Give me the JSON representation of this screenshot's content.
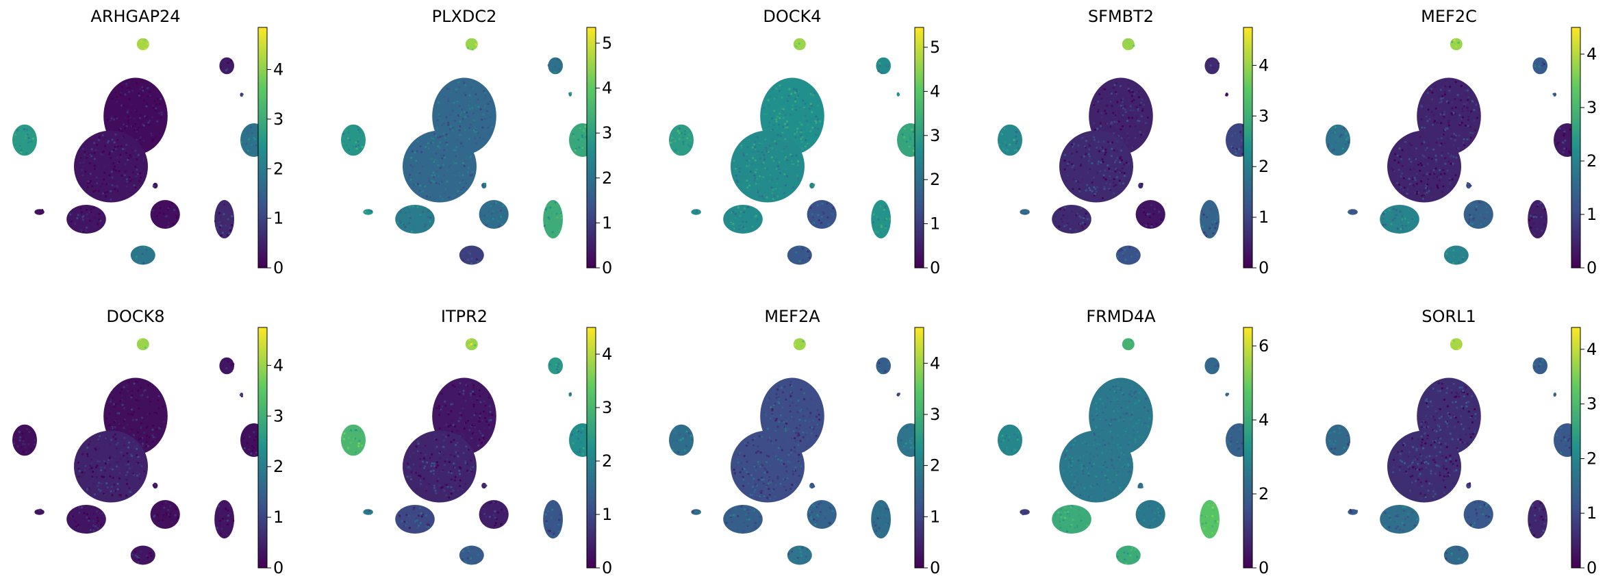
{
  "chart_data": {
    "type": "scatter",
    "description_kind": "umap_gene_expression_grid",
    "colormap": "viridis",
    "colormap_stops": [
      "#440154",
      "#3b528b",
      "#21918c",
      "#5ec962",
      "#fde725"
    ],
    "clusters": [
      {
        "id": "top-small",
        "cx": 0.53,
        "cy": 0.07,
        "rx": 0.025,
        "ry": 0.025
      },
      {
        "id": "upper-right-small",
        "cx": 0.87,
        "cy": 0.16,
        "rx": 0.03,
        "ry": 0.035
      },
      {
        "id": "dot-right",
        "cx": 0.93,
        "cy": 0.28,
        "rx": 0.006,
        "ry": 0.008
      },
      {
        "id": "center-top",
        "cx": 0.5,
        "cy": 0.37,
        "rx": 0.13,
        "ry": 0.16
      },
      {
        "id": "left",
        "cx": 0.05,
        "cy": 0.47,
        "rx": 0.05,
        "ry": 0.065
      },
      {
        "id": "right-big",
        "cx": 0.98,
        "cy": 0.47,
        "rx": 0.055,
        "ry": 0.07
      },
      {
        "id": "center-bottom",
        "cx": 0.4,
        "cy": 0.58,
        "rx": 0.15,
        "ry": 0.15
      },
      {
        "id": "small-mid",
        "cx": 0.58,
        "cy": 0.66,
        "rx": 0.01,
        "ry": 0.012
      },
      {
        "id": "far-left-small",
        "cx": 0.11,
        "cy": 0.77,
        "rx": 0.02,
        "ry": 0.012
      },
      {
        "id": "low-left",
        "cx": 0.3,
        "cy": 0.8,
        "rx": 0.08,
        "ry": 0.06
      },
      {
        "id": "low-center",
        "cx": 0.62,
        "cy": 0.78,
        "rx": 0.06,
        "ry": 0.06
      },
      {
        "id": "low-right",
        "cx": 0.86,
        "cy": 0.8,
        "rx": 0.04,
        "ry": 0.08
      },
      {
        "id": "bottom",
        "cx": 0.53,
        "cy": 0.95,
        "rx": 0.05,
        "ry": 0.04
      }
    ],
    "panels": [
      {
        "gene": "ARHGAP24",
        "vmax": 4.85,
        "ticks": [
          0,
          1,
          2,
          3,
          4
        ],
        "values": {
          "top-small": 4.2,
          "upper-right-small": 0.4,
          "dot-right": 0.6,
          "center-top": 0.15,
          "left": 2.6,
          "right-big": 1.8,
          "center-bottom": 0.3,
          "small-mid": 0.3,
          "far-left-small": 0.3,
          "low-left": 0.3,
          "low-center": 0.2,
          "low-right": 0.6,
          "bottom": 1.9
        }
      },
      {
        "gene": "PLXDC2",
        "vmax": 5.35,
        "ticks": [
          0,
          1,
          2,
          3,
          4,
          5
        ],
        "values": {
          "top-small": 4.5,
          "upper-right-small": 2.0,
          "dot-right": 2.3,
          "center-top": 1.8,
          "left": 2.8,
          "right-big": 3.2,
          "center-bottom": 1.8,
          "small-mid": 2.0,
          "far-left-small": 2.8,
          "low-left": 2.2,
          "low-center": 1.9,
          "low-right": 3.3,
          "bottom": 1.0
        }
      },
      {
        "gene": "DOCK4",
        "vmax": 5.45,
        "ticks": [
          0,
          1,
          2,
          3,
          4,
          5
        ],
        "values": {
          "top-small": 4.6,
          "upper-right-small": 2.6,
          "dot-right": 2.6,
          "center-top": 2.7,
          "left": 3.0,
          "right-big": 3.2,
          "center-bottom": 2.6,
          "small-mid": 2.3,
          "far-left-small": 2.6,
          "low-left": 2.6,
          "low-center": 1.4,
          "low-right": 2.8,
          "bottom": 1.5
        }
      },
      {
        "gene": "SFMBT2",
        "vmax": 4.75,
        "ticks": [
          0,
          1,
          2,
          3,
          4
        ],
        "values": {
          "top-small": 4.0,
          "upper-right-small": 0.6,
          "dot-right": 0.6,
          "center-top": 0.5,
          "left": 2.2,
          "right-big": 1.0,
          "center-bottom": 0.6,
          "small-mid": 0.6,
          "far-left-small": 1.6,
          "low-left": 0.6,
          "low-center": 0.3,
          "low-right": 1.5,
          "bottom": 1.2
        }
      },
      {
        "gene": "MEF2C",
        "vmax": 4.5,
        "ticks": [
          0,
          1,
          2,
          3,
          4
        ],
        "values": {
          "top-small": 3.8,
          "upper-right-small": 1.3,
          "dot-right": 1.3,
          "center-top": 0.5,
          "left": 1.7,
          "right-big": 0.3,
          "center-bottom": 0.5,
          "small-mid": 1.0,
          "far-left-small": 1.2,
          "low-left": 2.0,
          "low-center": 1.4,
          "low-right": 0.4,
          "bottom": 2.0
        }
      },
      {
        "gene": "DOCK8",
        "vmax": 4.75,
        "ticks": [
          0,
          1,
          2,
          3,
          4
        ],
        "values": {
          "top-small": 4.0,
          "upper-right-small": 0.3,
          "dot-right": 0.3,
          "center-top": 0.2,
          "left": 0.2,
          "right-big": 0.2,
          "center-bottom": 0.5,
          "small-mid": 0.3,
          "far-left-small": 0.3,
          "low-left": 0.3,
          "low-center": 0.2,
          "low-right": 0.3,
          "bottom": 0.3
        }
      },
      {
        "gene": "ITPR2",
        "vmax": 4.5,
        "ticks": [
          0,
          1,
          2,
          3,
          4
        ],
        "values": {
          "top-small": 3.8,
          "upper-right-small": 2.4,
          "dot-right": 1.8,
          "center-top": 0.3,
          "left": 3.0,
          "right-big": 2.2,
          "center-bottom": 0.5,
          "small-mid": 0.5,
          "far-left-small": 1.8,
          "low-left": 1.0,
          "low-center": 0.4,
          "low-right": 1.2,
          "bottom": 1.3
        }
      },
      {
        "gene": "MEF2A",
        "vmax": 4.7,
        "ticks": [
          0,
          1,
          2,
          3,
          4
        ],
        "values": {
          "top-small": 4.0,
          "upper-right-small": 1.4,
          "dot-right": 1.4,
          "center-top": 1.1,
          "left": 1.7,
          "right-big": 1.8,
          "center-bottom": 1.1,
          "small-mid": 1.2,
          "far-left-small": 1.6,
          "low-left": 1.4,
          "low-center": 1.5,
          "low-right": 1.7,
          "bottom": 1.8
        }
      },
      {
        "gene": "FRMD4A",
        "vmax": 6.5,
        "ticks": [
          0,
          2,
          4,
          6
        ],
        "values": {
          "top-small": 4.2,
          "upper-right-small": 2.2,
          "dot-right": 2.5,
          "center-top": 2.6,
          "left": 3.0,
          "right-big": 2.0,
          "center-bottom": 2.6,
          "small-mid": 2.4,
          "far-left-small": 1.2,
          "low-left": 4.0,
          "low-center": 2.6,
          "low-right": 4.7,
          "bottom": 4.0
        }
      },
      {
        "gene": "SORL1",
        "vmax": 4.4,
        "ticks": [
          0,
          1,
          2,
          3,
          4
        ],
        "values": {
          "top-small": 3.8,
          "upper-right-small": 1.3,
          "dot-right": 1.2,
          "center-top": 0.6,
          "left": 1.5,
          "right-big": 1.2,
          "center-bottom": 0.6,
          "small-mid": 0.8,
          "far-left-small": 1.3,
          "low-left": 1.6,
          "low-center": 1.2,
          "low-right": 0.5,
          "bottom": 1.5
        }
      }
    ]
  }
}
